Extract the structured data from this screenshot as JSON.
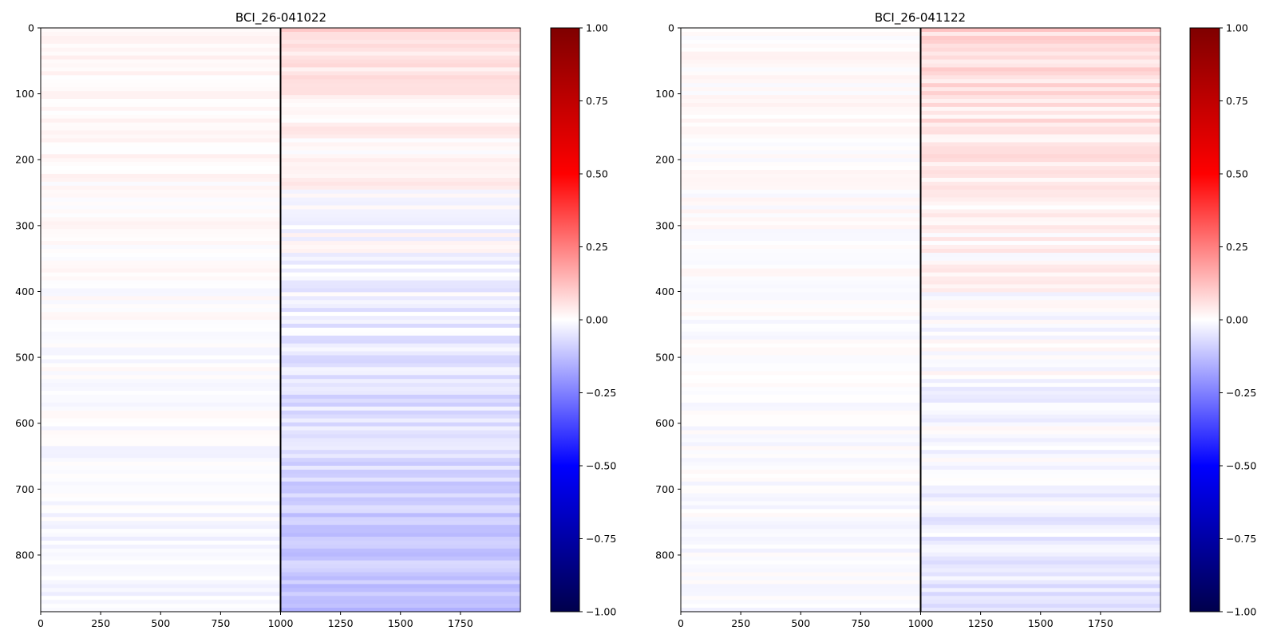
{
  "chart_data": [
    {
      "type": "heatmap",
      "title": "BCI_26-041022",
      "xlabel": "",
      "ylabel": "",
      "xlim": [
        0,
        2000
      ],
      "ylim": [
        0,
        886
      ],
      "y_inverted": true,
      "x_ticks": [
        "0",
        "250",
        "500",
        "750",
        "1000",
        "1250",
        "1500",
        "1750"
      ],
      "y_ticks": [
        "0",
        "100",
        "200",
        "300",
        "400",
        "500",
        "600",
        "700",
        "800"
      ],
      "vertical_marker_x": 1000,
      "colormap": "seismic",
      "color_range": [
        -1.0,
        1.0
      ],
      "colorbar_ticks": [
        "1.00",
        "0.75",
        "0.50",
        "0.25",
        "0.00",
        "−0.25",
        "−0.50",
        "−0.75",
        "−1.00"
      ],
      "trend": {
        "pre_marker_top": 0.02,
        "pre_marker_bottom": -0.02,
        "post_marker_top": 0.08,
        "post_marker_bottom": -0.12
      }
    },
    {
      "type": "heatmap",
      "title": "BCI_26-041122",
      "xlabel": "",
      "ylabel": "",
      "xlim": [
        0,
        2000
      ],
      "ylim": [
        0,
        886
      ],
      "y_inverted": true,
      "x_ticks": [
        "0",
        "250",
        "500",
        "750",
        "1000",
        "1250",
        "1500",
        "1750"
      ],
      "y_ticks": [
        "0",
        "100",
        "200",
        "300",
        "400",
        "500",
        "600",
        "700",
        "800"
      ],
      "vertical_marker_x": 1000,
      "colormap": "seismic",
      "color_range": [
        -1.0,
        1.0
      ],
      "colorbar_ticks": [
        "1.00",
        "0.75",
        "0.50",
        "0.25",
        "0.00",
        "−0.25",
        "−0.50",
        "−0.75",
        "−1.00"
      ],
      "trend": {
        "pre_marker_top": 0.01,
        "pre_marker_bottom": -0.01,
        "post_marker_top": 0.08,
        "post_marker_bottom": -0.05
      }
    }
  ],
  "colors": {
    "colormap_stops": [
      "#00004c",
      "#0000ff",
      "#ffffff",
      "#ff0000",
      "#7f0000"
    ],
    "marker_line": "#000000"
  }
}
